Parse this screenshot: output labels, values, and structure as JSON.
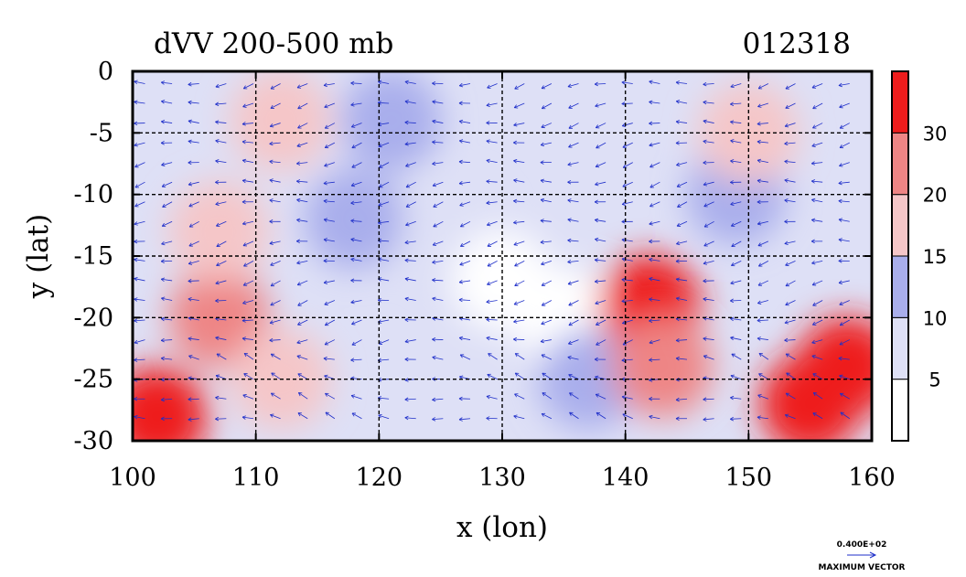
{
  "chart_data": {
    "type": "heatmap",
    "title": "dVV 200-500 mb",
    "date_label": "012318",
    "xlabel": "x (lon)",
    "ylabel": "y (lat)",
    "xlim": [
      100,
      160
    ],
    "ylim": [
      -30,
      0
    ],
    "x_ticks": [
      100,
      110,
      120,
      130,
      140,
      150,
      160
    ],
    "y_ticks": [
      0,
      -5,
      -10,
      -15,
      -20,
      -25,
      -30
    ],
    "grid": true,
    "grid_style": "dashed",
    "colorbar": {
      "position": "right",
      "levels": [
        0,
        5,
        10,
        15,
        20,
        30,
        40
      ],
      "tick_labels": [
        "5",
        "10",
        "15",
        "20",
        "30"
      ],
      "colors": [
        "#ffffff",
        "#dee0f6",
        "#a9aeec",
        "#f5c6c8",
        "#ee8585",
        "#ee1c1c"
      ]
    },
    "vector_legend": {
      "value_label": "0.400E+02",
      "caption": "MAXIMUM VECTOR",
      "color": "#1f2fc9"
    },
    "field_sample": [
      {
        "lon": 102,
        "lat": -28,
        "value": 35
      },
      {
        "lon": 107,
        "lat": -20,
        "value": 25
      },
      {
        "lon": 107,
        "lat": -13,
        "value": 18
      },
      {
        "lon": 112,
        "lat": -25,
        "value": 17
      },
      {
        "lon": 118,
        "lat": -12,
        "value": 12
      },
      {
        "lon": 126,
        "lat": -13,
        "value": 8
      },
      {
        "lon": 130,
        "lat": -17,
        "value": 4
      },
      {
        "lon": 135,
        "lat": -20,
        "value": 4
      },
      {
        "lon": 137,
        "lat": -25,
        "value": 11
      },
      {
        "lon": 142,
        "lat": -19,
        "value": 30
      },
      {
        "lon": 143,
        "lat": -24,
        "value": 22
      },
      {
        "lon": 149,
        "lat": -10,
        "value": 14
      },
      {
        "lon": 150,
        "lat": -5,
        "value": 17
      },
      {
        "lon": 155,
        "lat": -27,
        "value": 36
      },
      {
        "lon": 158,
        "lat": -24,
        "value": 33
      },
      {
        "lon": 121,
        "lat": -4,
        "value": 12
      },
      {
        "lon": 112,
        "lat": -4,
        "value": 16
      }
    ]
  }
}
